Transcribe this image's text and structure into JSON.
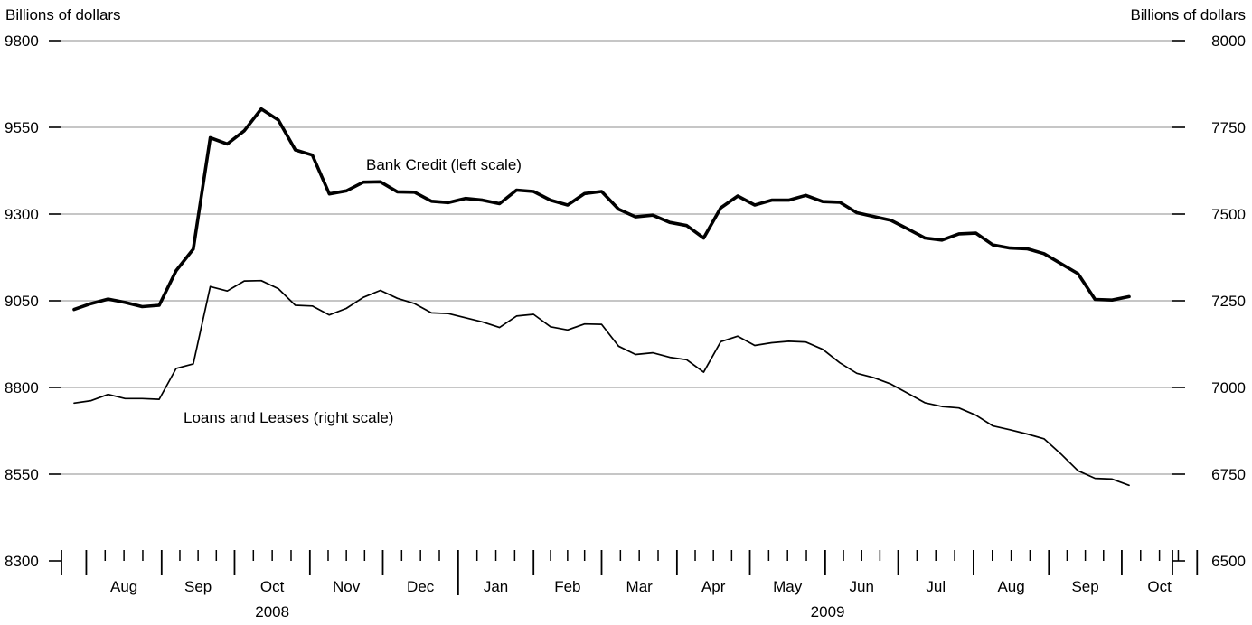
{
  "chart_data": {
    "type": "line",
    "left_axis": {
      "unit_label": "Billions of dollars",
      "ylim": [
        8300,
        9800
      ],
      "ticks": [
        "9800",
        "9550",
        "9300",
        "9050",
        "8800",
        "8550",
        "8300"
      ],
      "tick_values": [
        9800,
        9550,
        9300,
        9050,
        8800,
        8550,
        8300
      ]
    },
    "right_axis": {
      "unit_label": "Billions of dollars",
      "ylim": [
        6500,
        8000
      ],
      "ticks": [
        "8000",
        "7750",
        "7500",
        "7250",
        "7000",
        "6750",
        "6500"
      ],
      "tick_values": [
        8000,
        7750,
        7500,
        7250,
        7000,
        6750,
        6500
      ]
    },
    "grid": true,
    "x_axis": {
      "start_date": "2008-07-27",
      "month_boundaries": [
        "2008-08-01",
        "2008-09-01",
        "2008-10-01",
        "2008-11-01",
        "2008-12-01",
        "2009-01-01",
        "2009-02-01",
        "2009-03-01",
        "2009-04-01",
        "2009-05-01",
        "2009-06-01",
        "2009-07-01",
        "2009-08-01",
        "2009-09-01",
        "2009-10-01",
        "2009-11-01"
      ],
      "months": [
        "Aug",
        "Sep",
        "Oct",
        "Nov",
        "Dec",
        "Jan",
        "Feb",
        "Mar",
        "Apr",
        "May",
        "Jun",
        "Jul",
        "Aug",
        "Sep",
        "Oct"
      ],
      "years": [
        {
          "label": "2008",
          "from": "2008-08-01",
          "to": "2009-01-01"
        },
        {
          "label": "2009",
          "from": "2009-01-01",
          "to": "2009-11-01"
        }
      ]
    },
    "annotations": {
      "bank_credit": "Bank Credit (left scale)",
      "loans_leases": "Loans and Leases (right scale)"
    },
    "series": [
      {
        "name": "Bank Credit (left scale)",
        "axis": "left",
        "values": [
          9025,
          9042,
          9055,
          9045,
          9033,
          9037,
          9137,
          9199,
          9520,
          9502,
          9540,
          9603,
          9571,
          9485,
          9470,
          9358,
          9367,
          9392,
          9393,
          9364,
          9363,
          9337,
          9333,
          9345,
          9340,
          9330,
          9369,
          9365,
          9340,
          9326,
          9359,
          9365,
          9314,
          9292,
          9297,
          9276,
          9267,
          9231,
          9318,
          9352,
          9326,
          9340,
          9340,
          9354,
          9336,
          9334,
          9304,
          9293,
          9282,
          9257,
          9231,
          9225,
          9243,
          9245,
          9211,
          9202,
          9200,
          9186,
          9157,
          9128,
          9054,
          9052,
          9062
        ]
      },
      {
        "name": "Loans and Leases (right scale)",
        "axis": "right",
        "values": [
          6955,
          6962,
          6980,
          6968,
          6968,
          6966,
          7055,
          7068,
          7291,
          7278,
          7307,
          7308,
          7285,
          7237,
          7235,
          7209,
          7228,
          7260,
          7280,
          7257,
          7242,
          7215,
          7213,
          7201,
          7189,
          7173,
          7206,
          7211,
          7175,
          7166,
          7183,
          7182,
          7119,
          7095,
          7100,
          7087,
          7080,
          7044,
          7132,
          7148,
          7121,
          7129,
          7133,
          7131,
          7110,
          7071,
          7041,
          7028,
          7010,
          6983,
          6956,
          6945,
          6941,
          6920,
          6889,
          6878,
          6866,
          6852,
          6808,
          6760,
          6738,
          6736,
          6718
        ]
      }
    ]
  }
}
